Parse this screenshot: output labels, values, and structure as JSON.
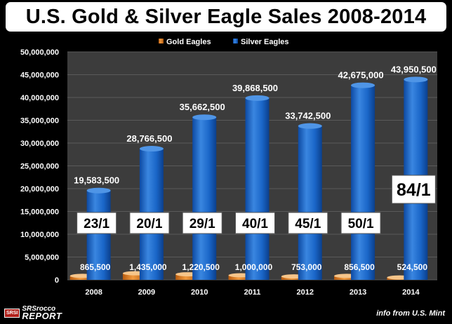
{
  "title": "U.S. Gold & Silver Eagle Sales 2008-2014",
  "source": "info from U.S. Mint",
  "logo": {
    "badge": "SRSI",
    "line1": "SRSrocco",
    "line2": "REPORT"
  },
  "colors": {
    "gold": "#e07b1a",
    "gold_light": "#f6c58a",
    "silver": "#1a66c8",
    "silver_light": "#5fa3f0",
    "plot_bg": "#3c3c3c",
    "grid": "#5a5a5a"
  },
  "chart_data": {
    "type": "bar",
    "title": "U.S. Gold & Silver Eagle Sales 2008-2014",
    "categories": [
      "2008",
      "2009",
      "2010",
      "2011",
      "2012",
      "2013",
      "2014"
    ],
    "series": [
      {
        "name": "Gold Eagles",
        "values": [
          865500,
          1435000,
          1220500,
          1000000,
          753000,
          856500,
          524500
        ],
        "labels": [
          "865,500",
          "1,435,000",
          "1,220,500",
          "1,000,000",
          "753,000",
          "856,500",
          "524,500"
        ]
      },
      {
        "name": "Silver Eagles",
        "values": [
          19583500,
          28766500,
          35662500,
          39868500,
          33742500,
          42675000,
          43950500
        ],
        "labels": [
          "19,583,500",
          "28,766,500",
          "35,662,500",
          "39,868,500",
          "33,742,500",
          "42,675,000",
          "43,950,500"
        ]
      }
    ],
    "ratios": [
      "23/1",
      "20/1",
      "29/1",
      "40/1",
      "45/1",
      "50/1",
      "84/1"
    ],
    "ylim": [
      0,
      50000000
    ],
    "yticks": [
      "0",
      "5,000,000",
      "10,000,000",
      "15,000,000",
      "20,000,000",
      "25,000,000",
      "30,000,000",
      "35,000,000",
      "40,000,000",
      "45,000,000",
      "50,000,000"
    ],
    "legend_position": "top",
    "grid": true
  }
}
